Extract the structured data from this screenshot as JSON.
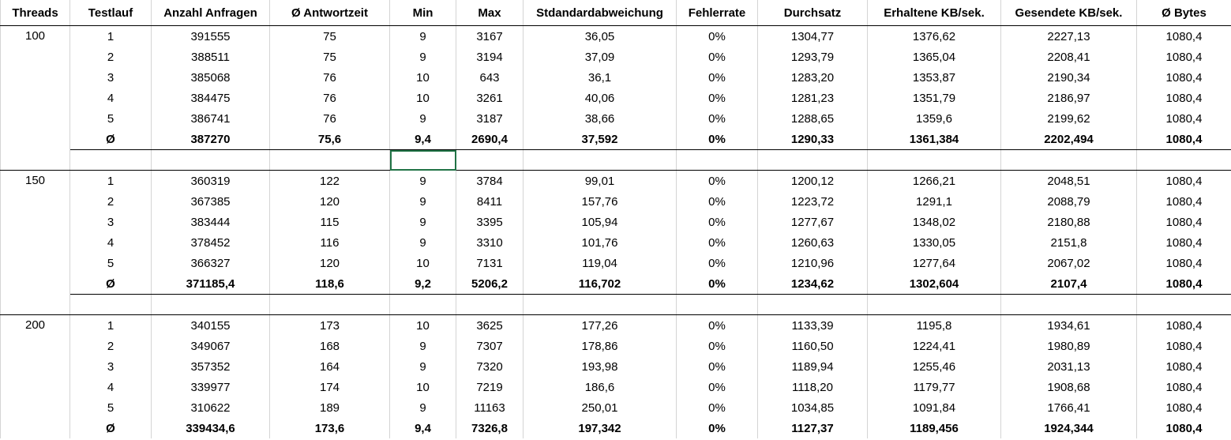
{
  "columns": [
    "Threads",
    "Testlauf",
    "Anzahl Anfragen",
    "Ø Antwortzeit",
    "Min",
    "Max",
    "Stdandardabweichung",
    "Fehlerrate",
    "Durchsatz",
    "Erhaltene KB/sek.",
    "Gesendete KB/sek.",
    "Ø Bytes"
  ],
  "groups": [
    {
      "threads": "100",
      "rows": [
        [
          "1",
          "391555",
          "75",
          "9",
          "3167",
          "36,05",
          "0%",
          "1304,77",
          "1376,62",
          "2227,13",
          "1080,4"
        ],
        [
          "2",
          "388511",
          "75",
          "9",
          "3194",
          "37,09",
          "0%",
          "1293,79",
          "1365,04",
          "2208,41",
          "1080,4"
        ],
        [
          "3",
          "385068",
          "76",
          "10",
          "643",
          "36,1",
          "0%",
          "1283,20",
          "1353,87",
          "2190,34",
          "1080,4"
        ],
        [
          "4",
          "384475",
          "76",
          "10",
          "3261",
          "40,06",
          "0%",
          "1281,23",
          "1351,79",
          "2186,97",
          "1080,4"
        ],
        [
          "5",
          "386741",
          "76",
          "9",
          "3187",
          "38,66",
          "0%",
          "1288,65",
          "1359,6",
          "2199,62",
          "1080,4"
        ]
      ],
      "avg": [
        "Ø",
        "387270",
        "75,6",
        "9,4",
        "2690,4",
        "37,592",
        "0%",
        "1290,33",
        "1361,384",
        "2202,494",
        "1080,4"
      ]
    },
    {
      "threads": "150",
      "rows": [
        [
          "1",
          "360319",
          "122",
          "9",
          "3784",
          "99,01",
          "0%",
          "1200,12",
          "1266,21",
          "2048,51",
          "1080,4"
        ],
        [
          "2",
          "367385",
          "120",
          "9",
          "8411",
          "157,76",
          "0%",
          "1223,72",
          "1291,1",
          "2088,79",
          "1080,4"
        ],
        [
          "3",
          "383444",
          "115",
          "9",
          "3395",
          "105,94",
          "0%",
          "1277,67",
          "1348,02",
          "2180,88",
          "1080,4"
        ],
        [
          "4",
          "378452",
          "116",
          "9",
          "3310",
          "101,76",
          "0%",
          "1260,63",
          "1330,05",
          "2151,8",
          "1080,4"
        ],
        [
          "5",
          "366327",
          "120",
          "10",
          "7131",
          "119,04",
          "0%",
          "1210,96",
          "1277,64",
          "2067,02",
          "1080,4"
        ]
      ],
      "avg": [
        "Ø",
        "371185,4",
        "118,6",
        "9,2",
        "5206,2",
        "116,702",
        "0%",
        "1234,62",
        "1302,604",
        "2107,4",
        "1080,4"
      ]
    },
    {
      "threads": "200",
      "rows": [
        [
          "1",
          "340155",
          "173",
          "10",
          "3625",
          "177,26",
          "0%",
          "1133,39",
          "1195,8",
          "1934,61",
          "1080,4"
        ],
        [
          "2",
          "349067",
          "168",
          "9",
          "7307",
          "178,86",
          "0%",
          "1160,50",
          "1224,41",
          "1980,89",
          "1080,4"
        ],
        [
          "3",
          "357352",
          "164",
          "9",
          "7320",
          "193,98",
          "0%",
          "1189,94",
          "1255,46",
          "2031,13",
          "1080,4"
        ],
        [
          "4",
          "339977",
          "174",
          "10",
          "7219",
          "186,6",
          "0%",
          "1118,20",
          "1179,77",
          "1908,68",
          "1080,4"
        ],
        [
          "5",
          "310622",
          "189",
          "9",
          "11163",
          "250,01",
          "0%",
          "1034,85",
          "1091,84",
          "1766,41",
          "1080,4"
        ]
      ],
      "avg": [
        "Ø",
        "339434,6",
        "173,6",
        "9,4",
        "7326,8",
        "197,342",
        "0%",
        "1127,37",
        "1189,456",
        "1924,344",
        "1080,4"
      ]
    }
  ],
  "colors": {
    "grid": "#d4d4d4",
    "selection": "#217346",
    "separator": "#000000"
  }
}
